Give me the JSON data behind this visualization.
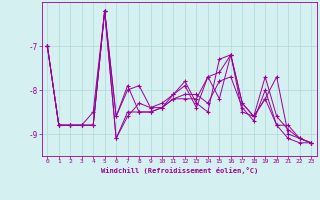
{
  "xlabel": "Windchill (Refroidissement éolien,°C)",
  "background_color": "#d4f0f0",
  "line_color": "#990099",
  "grid_color": "#b0d8d8",
  "x": [
    0,
    1,
    2,
    3,
    4,
    5,
    6,
    7,
    8,
    9,
    10,
    11,
    12,
    13,
    14,
    15,
    16,
    17,
    18,
    19,
    20,
    21,
    22,
    23
  ],
  "series": [
    [
      -7.0,
      -8.8,
      -8.8,
      -8.8,
      -8.8,
      -6.2,
      -8.6,
      -8.0,
      -7.9,
      -8.4,
      -8.3,
      -8.1,
      -7.8,
      -8.3,
      -8.5,
      -7.3,
      -7.2,
      -8.5,
      -8.6,
      -7.7,
      -8.6,
      -8.9,
      -9.1,
      -9.2
    ],
    [
      -7.0,
      -8.8,
      -8.8,
      -8.8,
      -8.5,
      -6.2,
      -9.1,
      -8.5,
      -8.5,
      -8.5,
      -8.4,
      -8.2,
      -8.1,
      -8.1,
      -8.3,
      -7.8,
      -7.7,
      -8.4,
      -8.7,
      -8.0,
      -8.8,
      -9.1,
      -9.2,
      -9.2
    ],
    [
      -7.0,
      -8.8,
      -8.8,
      -8.8,
      -8.8,
      -6.2,
      -8.6,
      -7.9,
      -8.5,
      -8.5,
      -8.4,
      -8.2,
      -8.2,
      -8.2,
      -7.7,
      -8.2,
      -7.2,
      -8.3,
      -8.6,
      -8.2,
      -8.8,
      -8.8,
      -9.1,
      -9.2
    ],
    [
      -7.0,
      -8.8,
      -8.8,
      -8.8,
      -8.8,
      -6.2,
      -9.1,
      -8.6,
      -8.3,
      -8.4,
      -8.4,
      -8.1,
      -7.9,
      -8.4,
      -7.7,
      -7.6,
      -7.2,
      -8.3,
      -8.6,
      -8.2,
      -7.7,
      -9.0,
      -9.1,
      -9.2
    ]
  ],
  "ylim": [
    -9.5,
    -6.0
  ],
  "yticks": [
    -9,
    -8,
    -7
  ],
  "xlim": [
    -0.5,
    23.5
  ]
}
